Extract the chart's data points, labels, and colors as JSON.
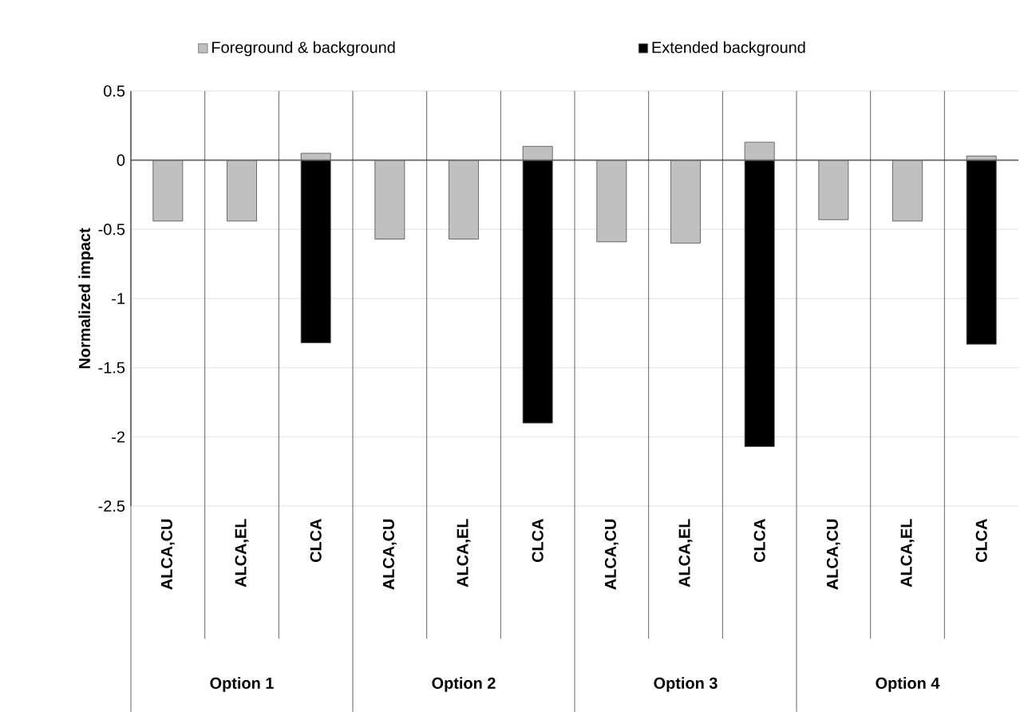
{
  "chart_data": {
    "type": "bar",
    "categories": [
      "ALCA,CU",
      "ALCA,EL",
      "CLCA",
      "ALCA,CU",
      "ALCA,EL",
      "CLCA",
      "ALCA,CU",
      "ALCA,EL",
      "CLCA",
      "ALCA,CU",
      "ALCA,EL",
      "CLCA"
    ],
    "series": [
      {
        "name": "Foreground & background",
        "color": "#c0c0c0",
        "values": [
          -0.44,
          -0.44,
          0.05,
          -0.57,
          -0.57,
          0.1,
          -0.59,
          -0.6,
          0.13,
          -0.43,
          -0.44,
          0.03
        ]
      },
      {
        "name": "Extended background",
        "color": "#000000",
        "values": [
          null,
          null,
          -1.32,
          null,
          null,
          -1.9,
          null,
          null,
          -2.07,
          null,
          null,
          -1.33
        ]
      }
    ],
    "ylabel": "Normalized impact",
    "ylim": [
      -2.5,
      0.5
    ],
    "yticks": [
      0.5,
      0,
      -0.5,
      -1,
      -1.5,
      -2,
      -2.5
    ],
    "grid": "y",
    "legend": "top",
    "annotations": [
      "Option 1",
      "Option 2",
      "Option 3",
      "Option 4"
    ]
  }
}
